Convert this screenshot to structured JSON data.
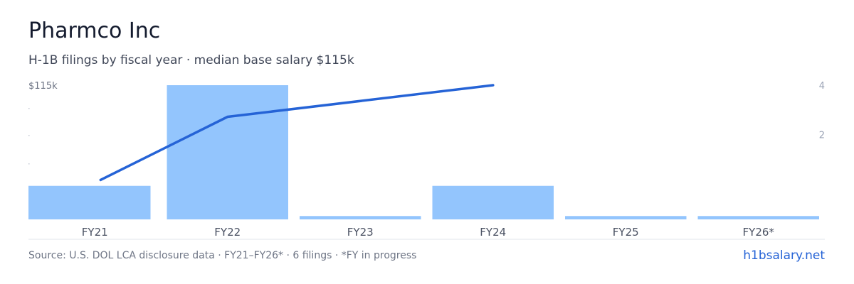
{
  "header": {
    "title": "Pharmco Inc",
    "subtitle": "H-1B filings by fiscal year · median base salary $115k"
  },
  "chart_data": {
    "type": "bar",
    "categories": [
      "FY21",
      "FY22",
      "FY23",
      "FY24",
      "FY25",
      "FY26*"
    ],
    "series": [
      {
        "kind": "bar",
        "axis": "right",
        "values": [
          1,
          4,
          0.1,
          1,
          0.1,
          0.1
        ]
      },
      {
        "kind": "line",
        "axis": "left",
        "values": [
          103000,
          111000,
          null,
          115000,
          null,
          null
        ]
      }
    ],
    "left_axis": {
      "label": "$115k",
      "max": 115000,
      "min_pixel_value": 0
    },
    "right_axis": {
      "ticks": [
        {
          "value": 4,
          "label": "4"
        },
        {
          "value": 2,
          "label": "2"
        }
      ],
      "range": [
        0,
        4
      ]
    },
    "colors": {
      "bar": "#93c5fd",
      "line": "#2563d6",
      "axis_text": "#6e7585",
      "right_tick_text": "#9aa3b5",
      "baseline": "#e2e5eb"
    }
  },
  "footer": {
    "source": "Source: U.S. DOL LCA disclosure data · FY21–FY26* · 6 filings · *FY in progress",
    "brand": "h1bsalary.net"
  }
}
